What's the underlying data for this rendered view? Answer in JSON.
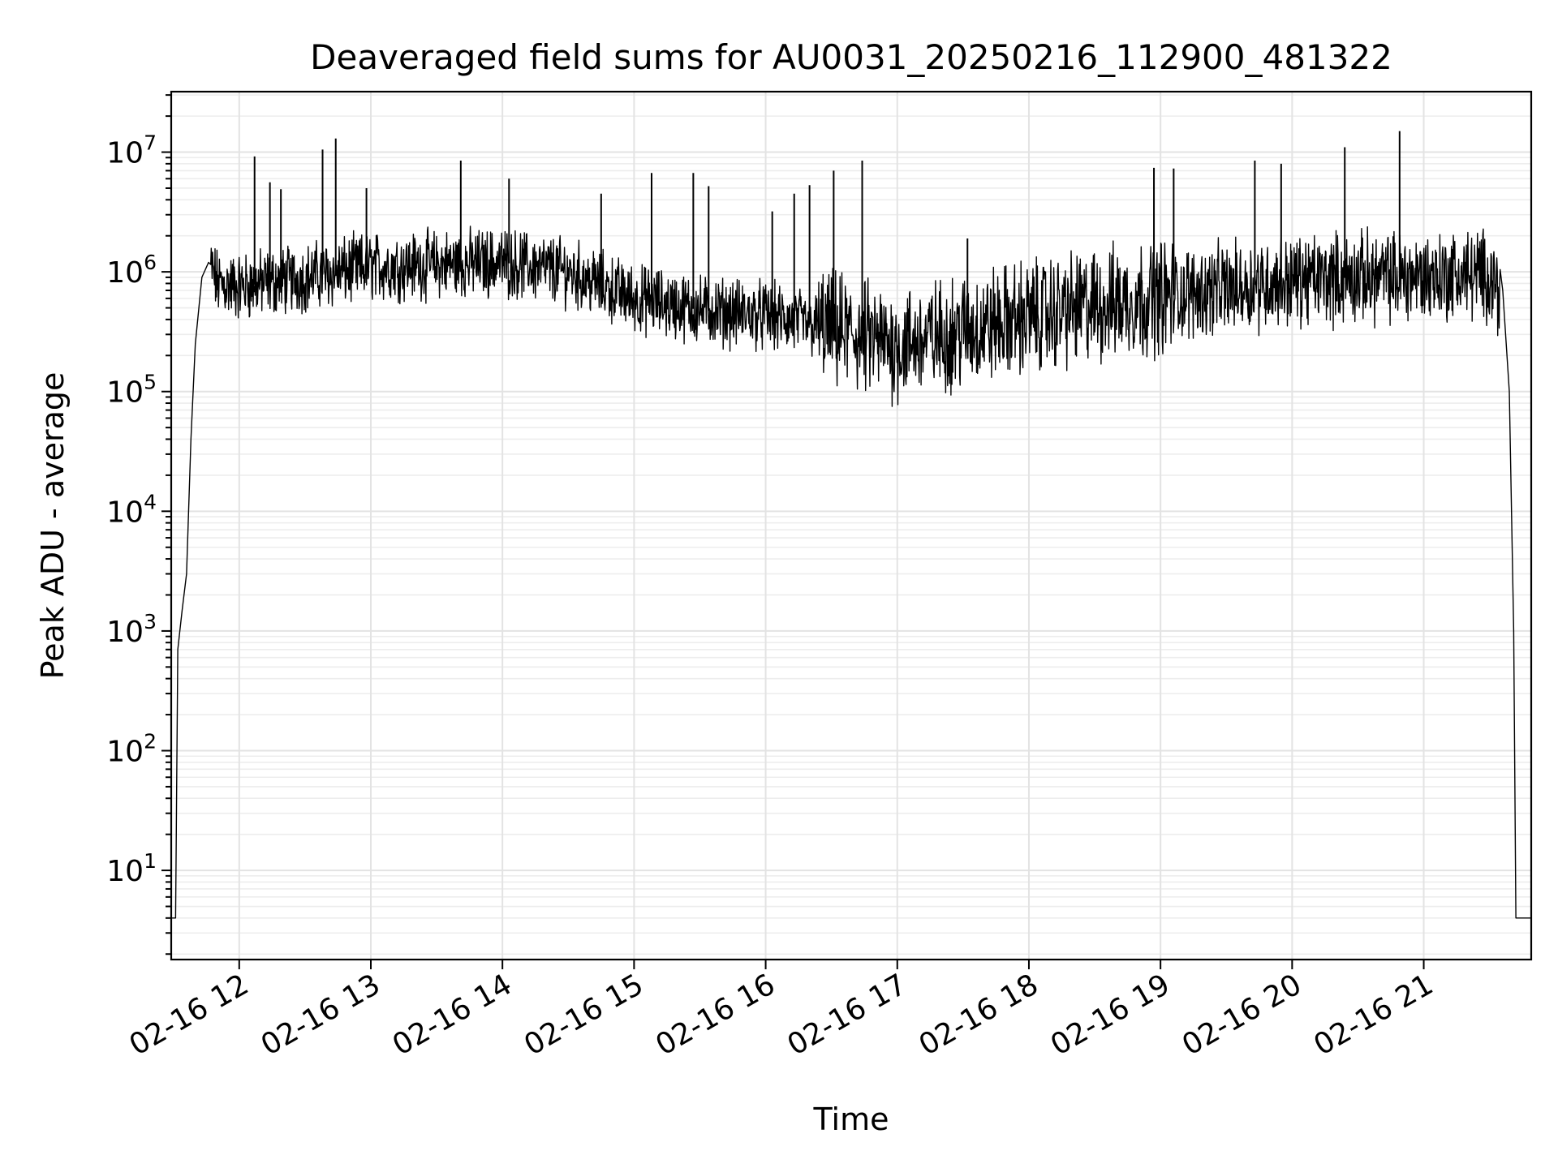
{
  "chart_data": {
    "type": "line",
    "title": "Deaveraged field sums for AU0031_20250216_112900_481322",
    "xlabel": "Time",
    "ylabel": "Peak ADU - average",
    "yscale": "log",
    "grid": true,
    "xlim": [
      "02-16 11:29",
      "02-16 21:49"
    ],
    "ylim": [
      1.8,
      32000000
    ],
    "x_ticks": [
      "02-16 12",
      "02-16 13",
      "02-16 14",
      "02-16 15",
      "02-16 16",
      "02-16 17",
      "02-16 18",
      "02-16 19",
      "02-16 20",
      "02-16 21"
    ],
    "y_ticks": [
      {
        "value": 10,
        "base": "10",
        "exp": "1"
      },
      {
        "value": 100,
        "base": "10",
        "exp": "2"
      },
      {
        "value": 1000,
        "base": "10",
        "exp": "3"
      },
      {
        "value": 10000,
        "base": "10",
        "exp": "4"
      },
      {
        "value": 100000,
        "base": "10",
        "exp": "5"
      },
      {
        "value": 1000000,
        "base": "10",
        "exp": "6"
      },
      {
        "value": 10000000,
        "base": "10",
        "exp": "7"
      }
    ],
    "series": [
      {
        "color": "#000000",
        "baseline": [
          {
            "x": "02-16 11:29",
            "y": 4
          },
          {
            "x": "02-16 11:31",
            "y": 4
          },
          {
            "x": "02-16 11:32",
            "y": 700
          },
          {
            "x": "02-16 11:34",
            "y": 1500
          },
          {
            "x": "02-16 11:36",
            "y": 3000
          },
          {
            "x": "02-16 11:38",
            "y": 40000
          },
          {
            "x": "02-16 11:40",
            "y": 250000
          },
          {
            "x": "02-16 11:43",
            "y": 900000
          },
          {
            "x": "02-16 11:46",
            "y": 1200000
          },
          {
            "x": "02-16 11:50",
            "y": 800000
          },
          {
            "x": "02-16 12:00",
            "y": 750000
          },
          {
            "x": "02-16 12:30",
            "y": 900000
          },
          {
            "x": "02-16 13:00",
            "y": 1100000
          },
          {
            "x": "02-16 13:30",
            "y": 1150000
          },
          {
            "x": "02-16 14:00",
            "y": 1200000
          },
          {
            "x": "02-16 14:30",
            "y": 1000000
          },
          {
            "x": "02-16 15:00",
            "y": 600000
          },
          {
            "x": "02-16 15:30",
            "y": 480000
          },
          {
            "x": "02-16 16:00",
            "y": 430000
          },
          {
            "x": "02-16 16:30",
            "y": 330000
          },
          {
            "x": "02-16 17:00",
            "y": 240000
          },
          {
            "x": "02-16 17:30",
            "y": 320000
          },
          {
            "x": "02-16 18:00",
            "y": 420000
          },
          {
            "x": "02-16 18:30",
            "y": 520000
          },
          {
            "x": "02-16 19:00",
            "y": 620000
          },
          {
            "x": "02-16 19:30",
            "y": 730000
          },
          {
            "x": "02-16 20:00",
            "y": 850000
          },
          {
            "x": "02-16 20:30",
            "y": 900000
          },
          {
            "x": "02-16 21:00",
            "y": 920000
          },
          {
            "x": "02-16 21:30",
            "y": 950000
          },
          {
            "x": "02-16 21:36",
            "y": 700000
          },
          {
            "x": "02-16 21:39",
            "y": 100000
          },
          {
            "x": "02-16 21:41",
            "y": 1000
          },
          {
            "x": "02-16 21:42",
            "y": 4
          },
          {
            "x": "02-16 21:49",
            "y": 4
          }
        ],
        "spikes": [
          {
            "x": "02-16 12:07",
            "y": 9200000
          },
          {
            "x": "02-16 12:14",
            "y": 5600000
          },
          {
            "x": "02-16 12:19",
            "y": 4900000
          },
          {
            "x": "02-16 12:38",
            "y": 10500000
          },
          {
            "x": "02-16 12:44",
            "y": 13000000
          },
          {
            "x": "02-16 12:58",
            "y": 5000000
          },
          {
            "x": "02-16 13:41",
            "y": 8500000
          },
          {
            "x": "02-16 14:03",
            "y": 6000000
          },
          {
            "x": "02-16 14:45",
            "y": 4500000
          },
          {
            "x": "02-16 15:08",
            "y": 6700000
          },
          {
            "x": "02-16 15:27",
            "y": 6700000
          },
          {
            "x": "02-16 15:34",
            "y": 5200000
          },
          {
            "x": "02-16 16:03",
            "y": 3200000
          },
          {
            "x": "02-16 16:13",
            "y": 4500000
          },
          {
            "x": "02-16 16:20",
            "y": 5300000
          },
          {
            "x": "02-16 16:31",
            "y": 7000000
          },
          {
            "x": "02-16 16:44",
            "y": 8500000
          },
          {
            "x": "02-16 17:32",
            "y": 1900000
          },
          {
            "x": "02-16 18:57",
            "y": 7400000
          },
          {
            "x": "02-16 19:06",
            "y": 7300000
          },
          {
            "x": "02-16 19:43",
            "y": 8500000
          },
          {
            "x": "02-16 19:55",
            "y": 8000000
          },
          {
            "x": "02-16 20:24",
            "y": 11000000
          },
          {
            "x": "02-16 20:49",
            "y": 15000000
          }
        ]
      }
    ]
  }
}
